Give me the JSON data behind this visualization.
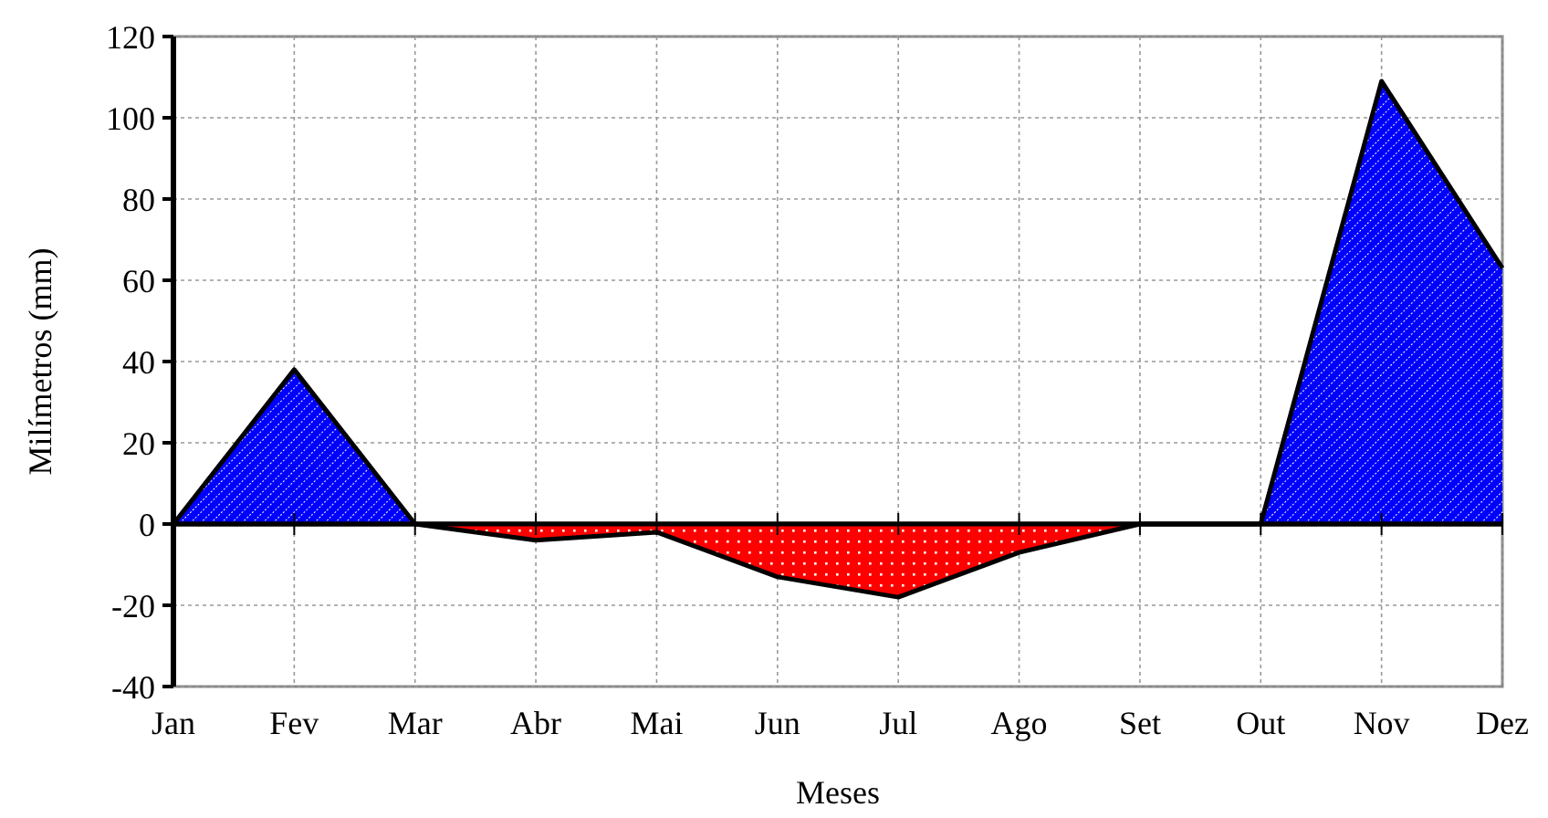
{
  "chart_data": {
    "type": "area",
    "xlabel": "Meses",
    "ylabel": "Milímetros (mm)",
    "categories": [
      "Jan",
      "Fev",
      "Mar",
      "Abr",
      "Mai",
      "Jun",
      "Jul",
      "Ago",
      "Set",
      "Out",
      "Nov",
      "Dez"
    ],
    "series": [
      {
        "color": "#0000ff",
        "values": [
          0,
          38,
          0,
          0,
          0,
          0,
          0,
          0,
          0,
          0,
          109,
          63
        ]
      },
      {
        "color": "#ff0000",
        "values": [
          0,
          0,
          0,
          -4,
          -2,
          -13,
          -18,
          -7,
          0,
          0,
          0,
          0
        ]
      }
    ],
    "ylim": [
      -40,
      120
    ],
    "yticks": [
      -40,
      -20,
      0,
      20,
      40,
      60,
      80,
      100,
      120
    ],
    "grid": true
  }
}
